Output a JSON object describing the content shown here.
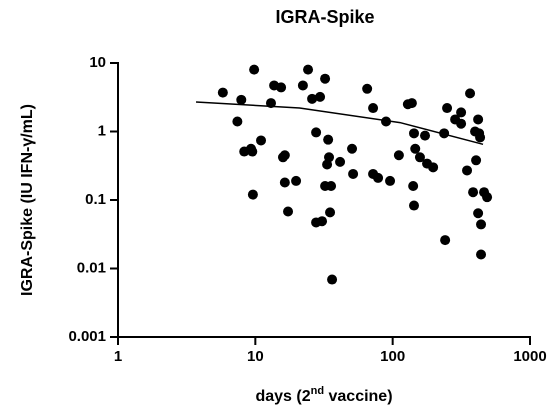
{
  "chart_data": {
    "type": "scatter",
    "title": "IGRA-Spike",
    "x_label": [
      "days (2",
      "nd",
      " vaccine)"
    ],
    "y_label": "IGRA-Spike (IU IFN-γ/mL)",
    "xscale": "log",
    "yscale": "log",
    "xlim": [
      1,
      1000
    ],
    "ylim": [
      0.001,
      10
    ],
    "xticks": [
      1,
      10,
      100,
      1000
    ],
    "yticks": [
      0.001,
      0.01,
      0.1,
      1,
      10
    ],
    "color": "#000000",
    "series": [
      {
        "x": [
          5.8,
          9.8,
          7.9,
          7.4,
          8.3,
          9.3,
          9.5,
          9.6,
          11,
          13,
          13.7,
          15.4,
          15.9,
          16.4,
          16.4,
          17.3,
          19.8,
          22.2,
          24.2,
          25.9,
          27.7,
          27.7,
          29.6,
          30.6,
          32.2,
          32.2,
          33.3,
          33.9,
          34.4,
          35,
          35.6,
          36.2,
          41.4,
          50.6,
          51.5,
          65.2,
          72,
          72,
          78.3,
          89.5,
          95.7,
          111,
          129,
          138,
          143,
          146,
          141,
          143,
          158,
          172,
          178,
          197,
          237,
          249,
          241,
          285,
          315,
          315,
          348,
          366,
          385,
          405,
          398,
          419,
          426,
          419,
          433,
          463,
          440,
          440,
          487
        ],
        "values": [
          3.7,
          8.0,
          2.9,
          1.4,
          0.51,
          0.56,
          0.51,
          0.12,
          0.74,
          2.6,
          4.7,
          4.4,
          0.42,
          0.45,
          0.18,
          0.068,
          0.19,
          4.7,
          8.0,
          3.0,
          0.97,
          0.047,
          3.2,
          0.049,
          5.9,
          0.16,
          0.33,
          0.76,
          0.42,
          0.066,
          0.16,
          0.0069,
          0.36,
          0.56,
          0.24,
          4.2,
          2.2,
          0.24,
          0.21,
          1.4,
          0.19,
          0.45,
          2.5,
          2.6,
          0.94,
          0.56,
          0.16,
          0.083,
          0.42,
          0.87,
          0.34,
          0.3,
          0.94,
          2.2,
          0.026,
          1.5,
          1.9,
          1.3,
          0.27,
          3.6,
          0.13,
          0.38,
          1.0,
          1.5,
          0.94,
          0.064,
          0.82,
          0.13,
          0.044,
          0.016,
          0.11
        ]
      }
    ],
    "fit": {
      "x": [
        3.7,
        21,
        113,
        455
      ],
      "values": [
        2.7,
        2.2,
        1.35,
        0.65
      ]
    }
  }
}
